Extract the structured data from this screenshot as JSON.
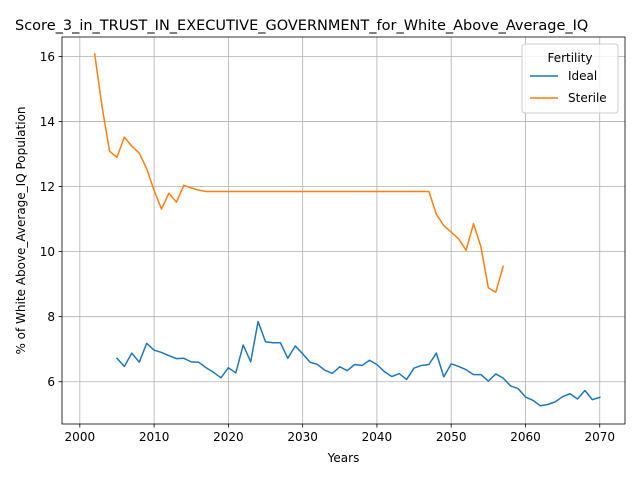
{
  "chart_data": {
    "type": "line",
    "title": "Score_3_in_TRUST_IN_EXECUTIVE_GOVERNMENT_for_White_Above_Average_IQ",
    "xlabel": "Years",
    "ylabel": "% of White Above_Average_IQ Population",
    "xlim": [
      1997.6,
      2073.4
    ],
    "ylim": [
      4.7,
      16.6
    ],
    "xticks": [
      2000,
      2010,
      2020,
      2030,
      2040,
      2050,
      2060,
      2070
    ],
    "yticks": [
      6,
      8,
      10,
      12,
      14,
      16
    ],
    "grid": true,
    "legend": {
      "title": "Fertility",
      "placement": "top-right"
    },
    "series": [
      {
        "name": "Ideal",
        "color": "#1f77b4",
        "x": [
          2005,
          2006,
          2007,
          2008,
          2009,
          2010,
          2011,
          2012,
          2013,
          2014,
          2015,
          2016,
          2017,
          2018,
          2019,
          2020,
          2021,
          2022,
          2023,
          2024,
          2025,
          2026,
          2027,
          2028,
          2029,
          2030,
          2031,
          2032,
          2033,
          2034,
          2035,
          2036,
          2037,
          2038,
          2039,
          2040,
          2041,
          2042,
          2043,
          2044,
          2045,
          2046,
          2047,
          2048,
          2049,
          2050,
          2051,
          2052,
          2053,
          2054,
          2055,
          2056,
          2057,
          2058,
          2059,
          2060,
          2061,
          2062,
          2063,
          2064,
          2065,
          2066,
          2067,
          2068,
          2069,
          2070
        ],
        "y": [
          6.72,
          6.47,
          6.88,
          6.6,
          7.18,
          6.97,
          6.9,
          6.8,
          6.71,
          6.72,
          6.61,
          6.6,
          6.43,
          6.29,
          6.12,
          6.43,
          6.27,
          7.13,
          6.61,
          7.85,
          7.23,
          7.2,
          7.2,
          6.72,
          7.1,
          6.86,
          6.6,
          6.53,
          6.35,
          6.26,
          6.46,
          6.34,
          6.53,
          6.5,
          6.66,
          6.53,
          6.31,
          6.16,
          6.25,
          6.07,
          6.42,
          6.5,
          6.53,
          6.88,
          6.15,
          6.55,
          6.47,
          6.37,
          6.22,
          6.22,
          6.02,
          6.24,
          6.11,
          5.87,
          5.79,
          5.53,
          5.43,
          5.26,
          5.3,
          5.38,
          5.54,
          5.63,
          5.47,
          5.73,
          5.45,
          5.52
        ]
      },
      {
        "name": "Sterile",
        "color": "#ff7f0e",
        "x": [
          2002,
          2003,
          2004,
          2005,
          2006,
          2007,
          2008,
          2009,
          2010,
          2011,
          2012,
          2013,
          2014,
          2015,
          2016,
          2017,
          2018,
          2019,
          2020,
          2021,
          2022,
          2023,
          2024,
          2025,
          2026,
          2027,
          2028,
          2029,
          2030,
          2031,
          2032,
          2033,
          2034,
          2035,
          2036,
          2037,
          2038,
          2039,
          2040,
          2041,
          2042,
          2043,
          2044,
          2045,
          2046,
          2047,
          2048,
          2049,
          2050,
          2051,
          2052,
          2053,
          2054,
          2055,
          2056,
          2057
        ],
        "y": [
          16.08,
          14.45,
          13.09,
          12.9,
          13.52,
          13.24,
          13.03,
          12.55,
          11.88,
          11.31,
          11.8,
          11.52,
          12.04,
          11.96,
          11.89,
          11.85,
          11.85,
          11.85,
          11.85,
          11.85,
          11.85,
          11.85,
          11.85,
          11.85,
          11.85,
          11.85,
          11.85,
          11.85,
          11.85,
          11.85,
          11.85,
          11.85,
          11.85,
          11.85,
          11.85,
          11.85,
          11.85,
          11.85,
          11.85,
          11.85,
          11.85,
          11.85,
          11.85,
          11.85,
          11.85,
          11.85,
          11.15,
          10.8,
          10.6,
          10.39,
          10.04,
          10.86,
          10.15,
          8.89,
          8.75,
          9.55
        ]
      }
    ]
  }
}
